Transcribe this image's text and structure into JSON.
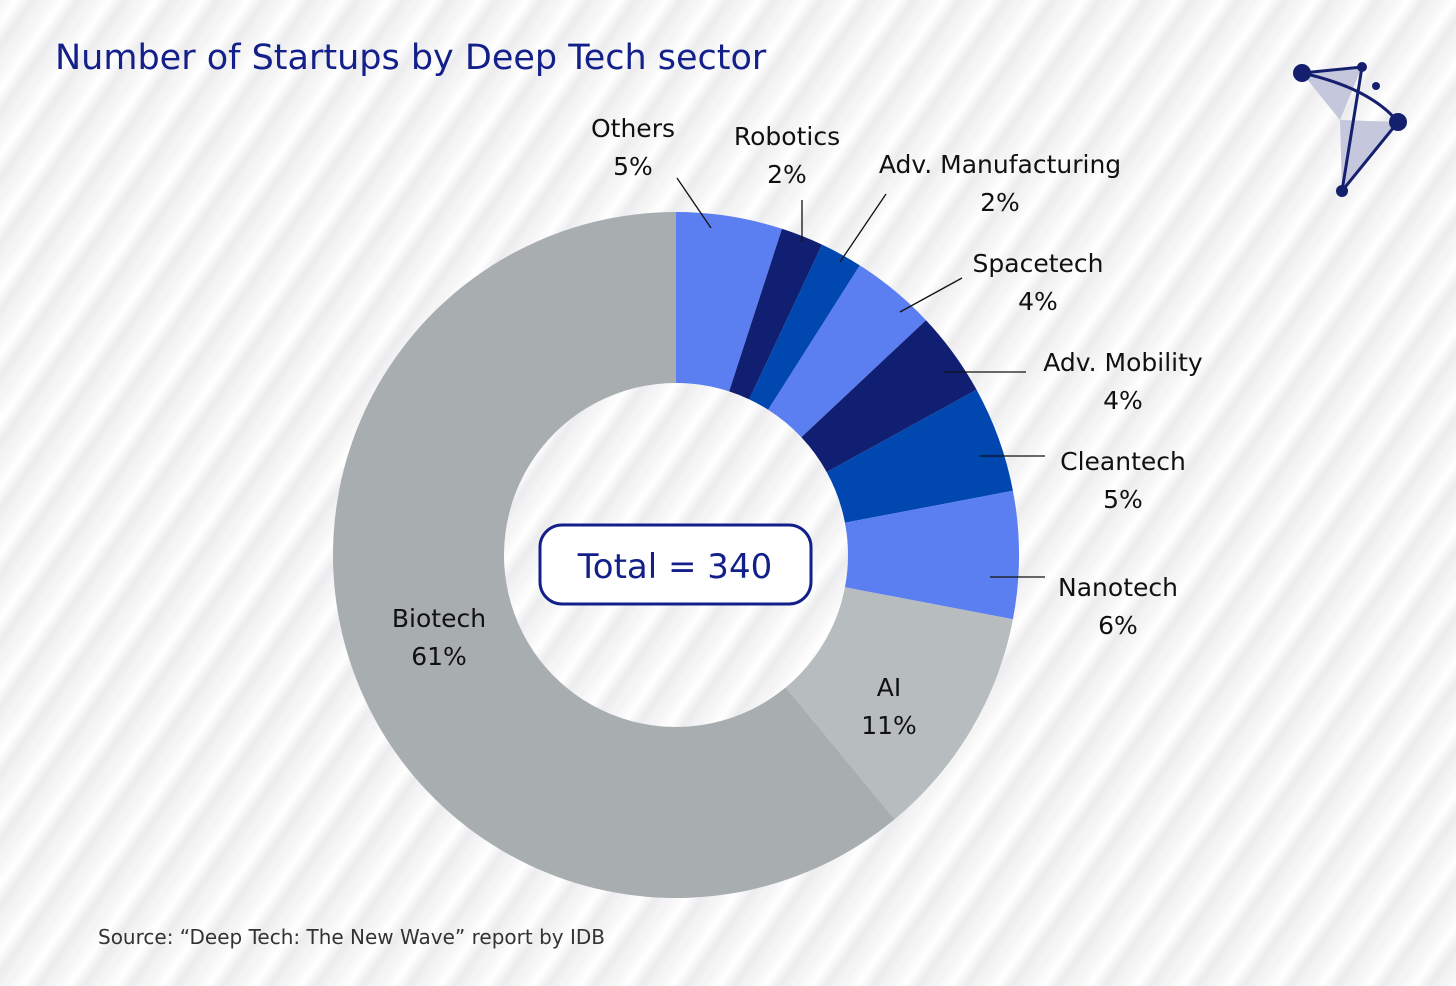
{
  "title": "Number of Startups by Deep Tech sector",
  "source": "Source: “Deep Tech: The New Wave” report by IDB",
  "logo": {
    "icon": "constellation-logo",
    "color": "#14206e"
  },
  "chart_data": {
    "type": "pie",
    "subtype": "donut",
    "title": "Number of Startups by Deep Tech sector",
    "center_label": "Total = 340",
    "total": 340,
    "slices": [
      {
        "label": "Others",
        "value": 5,
        "pct_label": "5%",
        "color": "#5b7ef0"
      },
      {
        "label": "Robotics",
        "value": 2,
        "pct_label": "2%",
        "color": "#101f72"
      },
      {
        "label": "Adv. Manufacturing",
        "value": 2,
        "pct_label": "2%",
        "color": "#0047b0"
      },
      {
        "label": "Spacetech",
        "value": 4,
        "pct_label": "4%",
        "color": "#5b7ef0"
      },
      {
        "label": "Adv. Mobility",
        "value": 4,
        "pct_label": "4%",
        "color": "#101f72"
      },
      {
        "label": "Cleantech",
        "value": 5,
        "pct_label": "5%",
        "color": "#0047b0"
      },
      {
        "label": "Nanotech",
        "value": 6,
        "pct_label": "6%",
        "color": "#5b7ef0"
      },
      {
        "label": "AI",
        "value": 11,
        "pct_label": "11%",
        "color": "#b7bcbf"
      },
      {
        "label": "Biotech",
        "value": 61,
        "pct_label": "61%",
        "color": "#a8adb0"
      }
    ]
  }
}
